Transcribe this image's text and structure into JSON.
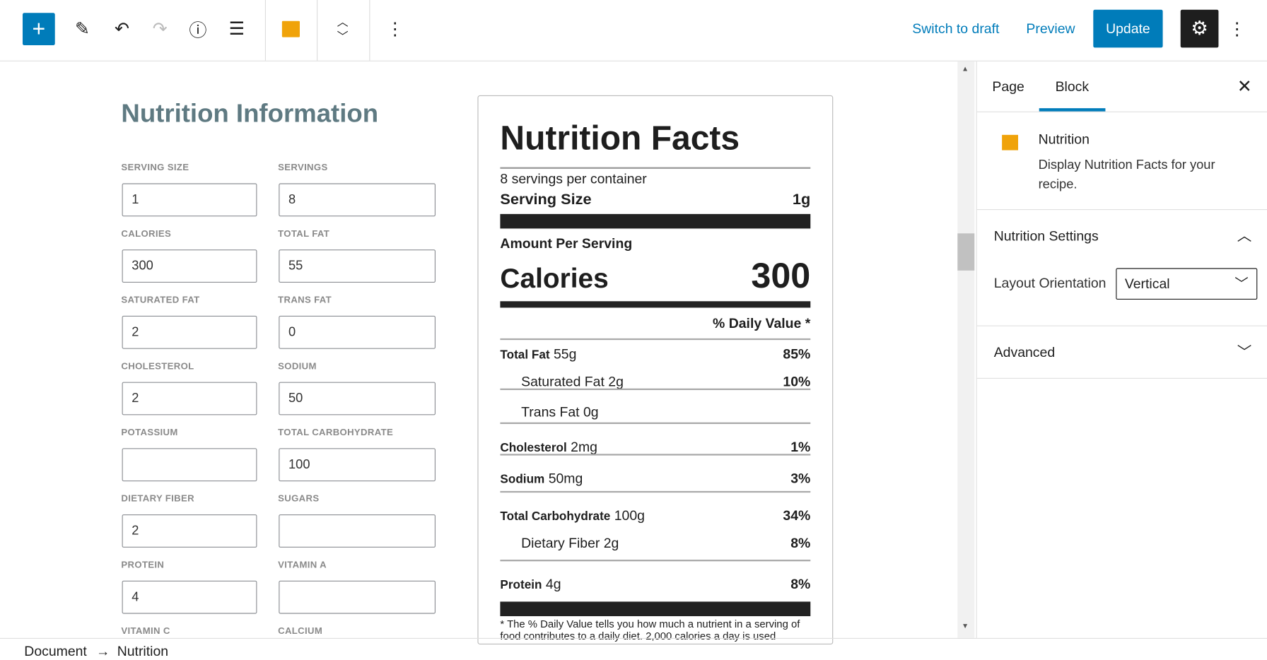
{
  "toolbar": {
    "switch_to_draft": "Switch to draft",
    "preview": "Preview",
    "update": "Update",
    "icons": [
      "plus-icon",
      "pencil-icon",
      "undo-icon",
      "redo-icon",
      "info-icon",
      "list-view-icon",
      "nutrition-block-icon",
      "move-up-down-icon",
      "more-vertical-icon",
      "gear-icon"
    ]
  },
  "form": {
    "title": "Nutrition Information",
    "fields": [
      {
        "label": "SERVING SIZE",
        "value": "1"
      },
      {
        "label": "SERVINGS",
        "value": "8"
      },
      {
        "label": "CALORIES",
        "value": "300"
      },
      {
        "label": "TOTAL FAT",
        "value": "55"
      },
      {
        "label": "SATURATED FAT",
        "value": "2"
      },
      {
        "label": "TRANS FAT",
        "value": "0"
      },
      {
        "label": "CHOLESTEROL",
        "value": "2"
      },
      {
        "label": "SODIUM",
        "value": "50"
      },
      {
        "label": "POTASSIUM",
        "value": ""
      },
      {
        "label": "TOTAL CARBOHYDRATE",
        "value": "100"
      },
      {
        "label": "DIETARY FIBER",
        "value": "2"
      },
      {
        "label": "SUGARS",
        "value": ""
      },
      {
        "label": "PROTEIN",
        "value": "4"
      },
      {
        "label": "VITAMIN A",
        "value": ""
      },
      {
        "label": "VITAMIN C",
        "value": ""
      },
      {
        "label": "CALCIUM",
        "value": ""
      }
    ]
  },
  "facts": {
    "title": "Nutrition Facts",
    "servings": "8 servings per container",
    "serving_size_label": "Serving Size",
    "serving_size": "1g",
    "amount_per_serving": "Amount Per Serving",
    "calories_label": "Calories",
    "calories": "300",
    "daily_value": "% Daily Value *",
    "rows": [
      {
        "label": "Total Fat",
        "amount": "55g",
        "pct": "85%"
      },
      {
        "label": "Saturated Fat 2g",
        "amount": "",
        "pct": "10%"
      },
      {
        "label": "Trans Fat 0g",
        "amount": "",
        "pct": ""
      },
      {
        "label": "Cholesterol",
        "amount": "2mg",
        "pct": "1%"
      },
      {
        "label": "Sodium",
        "amount": "50mg",
        "pct": "3%"
      },
      {
        "label": "Total Carbohydrate",
        "amount": "100g",
        "pct": "34%"
      },
      {
        "label": "Dietary Fiber 2g",
        "amount": "",
        "pct": "8%"
      },
      {
        "label": "Protein",
        "amount": "4g",
        "pct": "8%"
      }
    ],
    "footnote": "* The % Daily Value tells you how much a nutrient in a serving of food contributes to a daily diet. 2,000 calories a day is used"
  },
  "sidebar": {
    "tabs": [
      "Page",
      "Block"
    ],
    "active_tab": "Block",
    "block_name": "Nutrition",
    "block_desc": "Display Nutrition Facts for your recipe.",
    "settings_title": "Nutrition Settings",
    "layout_label": "Layout Orientation",
    "layout_value": "Vertical",
    "advanced": "Advanced"
  },
  "breadcrumb": {
    "items": [
      "Document",
      "Nutrition"
    ],
    "separator": "→"
  }
}
